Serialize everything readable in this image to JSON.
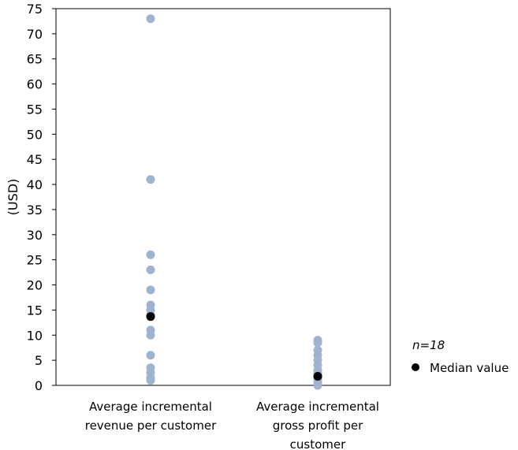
{
  "chart_data": {
    "type": "scatter",
    "ylabel": "(USD)",
    "ylim": [
      0,
      75
    ],
    "yticks": [
      0,
      5,
      10,
      15,
      20,
      25,
      30,
      35,
      40,
      45,
      50,
      55,
      60,
      65,
      70,
      75
    ],
    "categories": [
      [
        "Average incremental",
        "revenue per customer"
      ],
      [
        "Average incremental",
        "gross profit per",
        "customer"
      ]
    ],
    "series": [
      {
        "category_index": 0,
        "values": [
          73.0,
          41.0,
          26.0,
          23.0,
          19.0,
          16.0,
          15.0,
          14.0,
          11.0,
          10.0,
          6.0,
          3.5,
          2.5,
          1.5,
          1.0
        ]
      },
      {
        "category_index": 1,
        "values": [
          9.0,
          8.5,
          7.0,
          6.0,
          5.0,
          4.0,
          3.0,
          2.5,
          2.0,
          1.5,
          1.0,
          0.5,
          0.0
        ]
      }
    ],
    "medians": [
      13.7,
      1.8
    ],
    "point_color": "#9fb3d0",
    "median_color": "#000000",
    "legend": {
      "n_label": "n=18",
      "median_label": "Median value",
      "placement": "right"
    },
    "grid": false
  }
}
